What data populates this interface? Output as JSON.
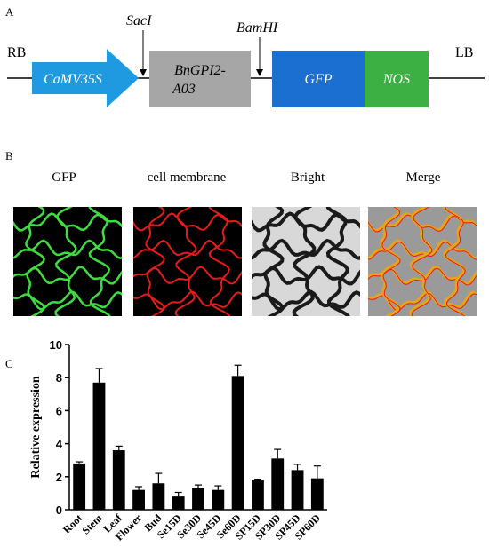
{
  "panel_a": {
    "letter": "A",
    "left_border": "RB",
    "right_border": "LB",
    "site_1": "SacI",
    "site_2": "BamHI",
    "promoter": "CaMV35S",
    "gene_line1": "BnGPI2-",
    "gene_line2": "A03",
    "reporter": "GFP",
    "terminator": "NOS",
    "colors": {
      "promoter": "#1f9ae0",
      "gene": "#a6a6a6",
      "reporter": "#1a6fd0",
      "terminator": "#3cb043"
    }
  },
  "panel_b": {
    "letter": "B",
    "columns": [
      {
        "label": "GFP",
        "channel": "green"
      },
      {
        "label": "cell membrane",
        "channel": "red"
      },
      {
        "label": "Bright",
        "channel": "gray"
      },
      {
        "label": "Merge",
        "channel": "merge"
      }
    ]
  },
  "panel_c": {
    "letter": "C"
  },
  "chart_data": {
    "type": "bar",
    "ylabel": "Relative expression",
    "xlabel": "",
    "ylim": [
      0,
      10
    ],
    "yticks": [
      0,
      2,
      4,
      6,
      8,
      10
    ],
    "categories": [
      "Root",
      "Stem",
      "Leaf",
      "Flower",
      "Bud",
      "Se15D",
      "Se30D",
      "Se45D",
      "Se60D",
      "SP15D",
      "SP30D",
      "SP45D",
      "SP60D"
    ],
    "values": [
      2.8,
      7.7,
      3.6,
      1.2,
      1.6,
      0.8,
      1.3,
      1.2,
      8.1,
      1.8,
      3.1,
      2.4,
      1.9
    ],
    "errors": [
      0.1,
      0.85,
      0.25,
      0.2,
      0.6,
      0.25,
      0.2,
      0.25,
      0.65,
      0.05,
      0.55,
      0.35,
      0.75
    ],
    "bar_color": "#000000",
    "grid": false
  }
}
